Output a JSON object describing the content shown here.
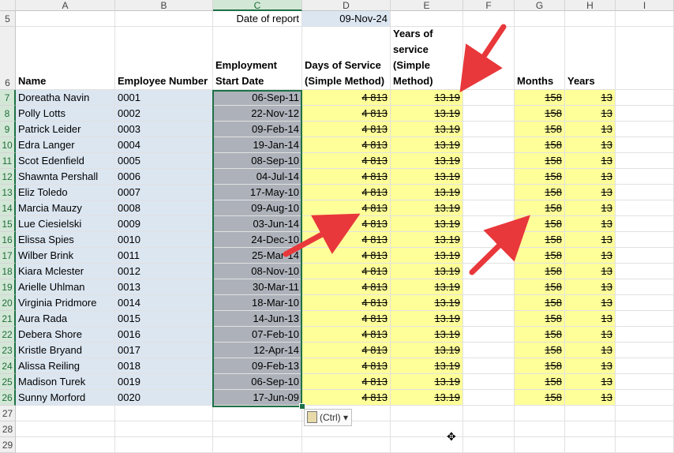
{
  "columns": [
    "A",
    "B",
    "C",
    "D",
    "E",
    "F",
    "G",
    "H",
    "I"
  ],
  "row_numbers": [
    "5",
    "6",
    "7",
    "8",
    "9",
    "10",
    "11",
    "12",
    "13",
    "14",
    "15",
    "16",
    "17",
    "18",
    "19",
    "20",
    "21",
    "22",
    "23",
    "24",
    "25",
    "26",
    "27",
    "28",
    "29"
  ],
  "report": {
    "label": "Date of report",
    "value": "09-Nov-24"
  },
  "headers": {
    "name": "Name",
    "emp_number": "Employee Number",
    "start_line1": "Employment",
    "start_line2": "Start Date",
    "days_line1": "Days of Service",
    "days_line2": "(Simple Method)",
    "years_line1": "Years of",
    "years_line2": "service",
    "years_line3": "(Simple",
    "years_line4": "Method)",
    "months": "Months",
    "years": "Years"
  },
  "employees": [
    {
      "name": "Doreatha Navin",
      "num": "0001",
      "start": "06-Sep-11",
      "days": "4 813",
      "years_service": "13.19",
      "months": "158",
      "years": "13"
    },
    {
      "name": "Polly Lotts",
      "num": "0002",
      "start": "22-Nov-12",
      "days": "4 813",
      "years_service": "13.19",
      "months": "158",
      "years": "13"
    },
    {
      "name": "Patrick Leider",
      "num": "0003",
      "start": "09-Feb-14",
      "days": "4 813",
      "years_service": "13.19",
      "months": "158",
      "years": "13"
    },
    {
      "name": "Edra Langer",
      "num": "0004",
      "start": "19-Jan-14",
      "days": "4 813",
      "years_service": "13.19",
      "months": "158",
      "years": "13"
    },
    {
      "name": "Scot Edenfield",
      "num": "0005",
      "start": "08-Sep-10",
      "days": "4 813",
      "years_service": "13.19",
      "months": "158",
      "years": "13"
    },
    {
      "name": "Shawnta Pershall",
      "num": "0006",
      "start": "04-Jul-14",
      "days": "4 813",
      "years_service": "13.19",
      "months": "158",
      "years": "13"
    },
    {
      "name": "Eliz Toledo",
      "num": "0007",
      "start": "17-May-10",
      "days": "4 813",
      "years_service": "13.19",
      "months": "158",
      "years": "13"
    },
    {
      "name": "Marcia Mauzy",
      "num": "0008",
      "start": "09-Aug-10",
      "days": "4 813",
      "years_service": "13.19",
      "months": "158",
      "years": "13"
    },
    {
      "name": "Lue Ciesielski",
      "num": "0009",
      "start": "03-Jun-14",
      "days": "4 813",
      "years_service": "13.19",
      "months": "158",
      "years": "13"
    },
    {
      "name": "Elissa Spies",
      "num": "0010",
      "start": "24-Dec-10",
      "days": "4 813",
      "years_service": "13.19",
      "months": "158",
      "years": "13"
    },
    {
      "name": "Wilber Brink",
      "num": "0011",
      "start": "25-Mar-14",
      "days": "4 813",
      "years_service": "13.19",
      "months": "158",
      "years": "13"
    },
    {
      "name": "Kiara Mclester",
      "num": "0012",
      "start": "08-Nov-10",
      "days": "4 813",
      "years_service": "13.19",
      "months": "158",
      "years": "13"
    },
    {
      "name": "Arielle Uhlman",
      "num": "0013",
      "start": "30-Mar-11",
      "days": "4 813",
      "years_service": "13.19",
      "months": "158",
      "years": "13"
    },
    {
      "name": "Virginia Pridmore",
      "num": "0014",
      "start": "18-Mar-10",
      "days": "4 813",
      "years_service": "13.19",
      "months": "158",
      "years": "13"
    },
    {
      "name": "Aura Rada",
      "num": "0015",
      "start": "14-Jun-13",
      "days": "4 813",
      "years_service": "13.19",
      "months": "158",
      "years": "13"
    },
    {
      "name": "Debera Shore",
      "num": "0016",
      "start": "07-Feb-10",
      "days": "4 813",
      "years_service": "13.19",
      "months": "158",
      "years": "13"
    },
    {
      "name": "Kristle Bryand",
      "num": "0017",
      "start": "12-Apr-14",
      "days": "4 813",
      "years_service": "13.19",
      "months": "158",
      "years": "13"
    },
    {
      "name": "Alissa Reiling",
      "num": "0018",
      "start": "09-Feb-13",
      "days": "4 813",
      "years_service": "13.19",
      "months": "158",
      "years": "13"
    },
    {
      "name": "Madison Turek",
      "num": "0019",
      "start": "06-Sep-10",
      "days": "4 813",
      "years_service": "13.19",
      "months": "158",
      "years": "13"
    },
    {
      "name": "Sunny Morford",
      "num": "0020",
      "start": "17-Jun-09",
      "days": "4 813",
      "years_service": "13.19",
      "months": "158",
      "years": "13"
    }
  ],
  "paste_options": {
    "label": "(Ctrl)",
    "icon": "clipboard-icon"
  },
  "colors": {
    "selection": "#1e7145",
    "yellow": "#ffff99",
    "blue": "#dce6f1",
    "grey": "#adb2ba",
    "arrow": "#e8383b"
  }
}
